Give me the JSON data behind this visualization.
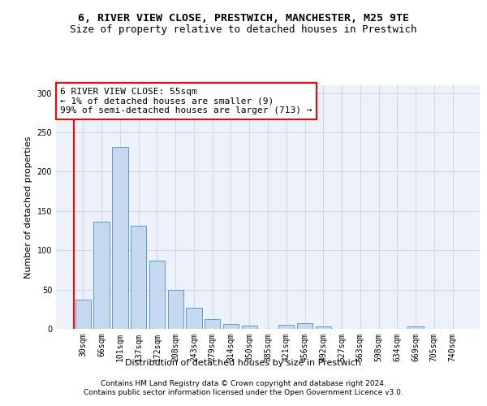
{
  "title_line1": "6, RIVER VIEW CLOSE, PRESTWICH, MANCHESTER, M25 9TE",
  "title_line2": "Size of property relative to detached houses in Prestwich",
  "xlabel": "Distribution of detached houses by size in Prestwich",
  "ylabel": "Number of detached properties",
  "footer_line1": "Contains HM Land Registry data © Crown copyright and database right 2024.",
  "footer_line2": "Contains public sector information licensed under the Open Government Licence v3.0.",
  "annotation_title": "6 RIVER VIEW CLOSE: 55sqm",
  "annotation_line1": "← 1% of detached houses are smaller (9)",
  "annotation_line2": "99% of semi-detached houses are larger (713) →",
  "bar_labels": [
    "30sqm",
    "66sqm",
    "101sqm",
    "137sqm",
    "172sqm",
    "208sqm",
    "243sqm",
    "279sqm",
    "314sqm",
    "350sqm",
    "385sqm",
    "421sqm",
    "456sqm",
    "492sqm",
    "527sqm",
    "563sqm",
    "598sqm",
    "634sqm",
    "669sqm",
    "705sqm",
    "740sqm"
  ],
  "bar_values": [
    37,
    136,
    231,
    131,
    87,
    50,
    27,
    12,
    6,
    4,
    0,
    5,
    7,
    3,
    0,
    0,
    0,
    0,
    3,
    0,
    0
  ],
  "bar_color": "#c5d8f0",
  "bar_edge_color": "#5b9bd5",
  "ylim": [
    0,
    310
  ],
  "yticks": [
    0,
    50,
    100,
    150,
    200,
    250,
    300
  ],
  "grid_color": "#d0d8e8",
  "background_color": "#edf2fa",
  "annotation_box_color": "white",
  "annotation_box_edge_color": "red",
  "red_line_color": "red",
  "title_fontsize": 9.5,
  "subtitle_fontsize": 9,
  "axis_label_fontsize": 8,
  "tick_fontsize": 7,
  "annotation_fontsize": 8,
  "footer_fontsize": 6.5
}
